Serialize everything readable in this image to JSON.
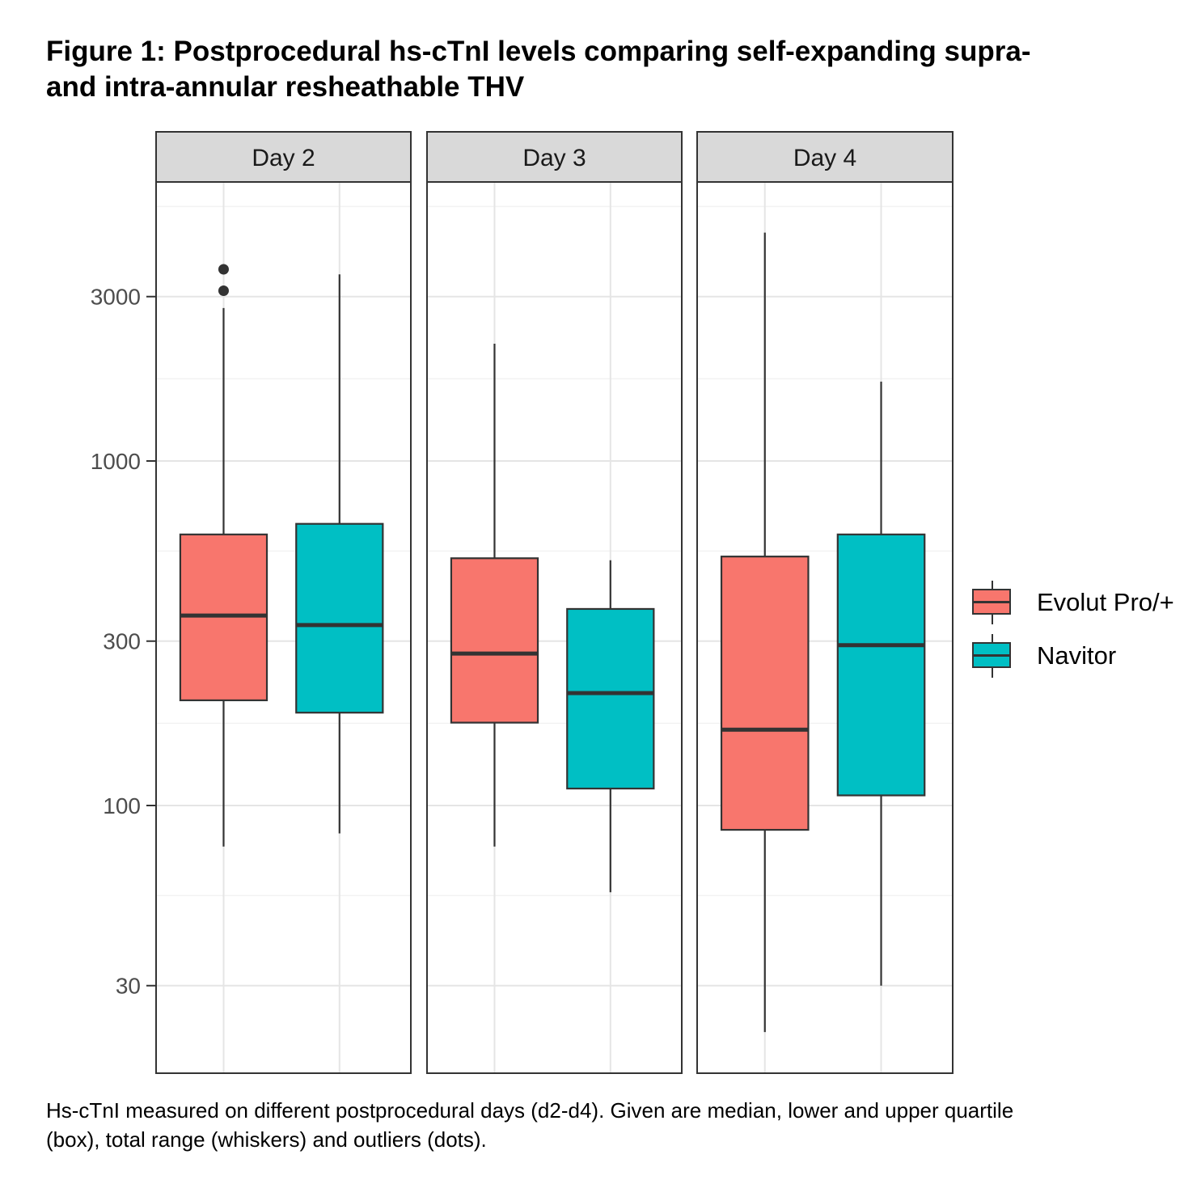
{
  "title": {
    "line1": "Figure 1: Postprocedural hs-cTnI levels comparing self-expanding supra-",
    "line2": "and intra-annular resheathable THV"
  },
  "caption": {
    "line1": "Hs-cTnI measured on different postprocedural days (d2-d4). Given are median, lower and upper quartile",
    "line2": "(box), total range (whiskers) and outliers (dots)."
  },
  "legend": {
    "items": [
      {
        "label": "Evolut Pro/+",
        "color": "#F8766D"
      },
      {
        "label": "Navitor",
        "color": "#00BFC4"
      }
    ]
  },
  "chart_data": {
    "type": "boxplot",
    "y_scale": "log10",
    "ylim": [
      18,
      6000
    ],
    "y_ticks": [
      30,
      100,
      300,
      1000,
      3000
    ],
    "y_tick_labels": [
      "30",
      "100",
      "300",
      "1000",
      "3000"
    ],
    "grid": true,
    "legend_position": "right",
    "facets": [
      {
        "label": "Day 2",
        "groups": [
          {
            "series": "Evolut Pro/+",
            "min": 76,
            "q1": 202,
            "median": 356,
            "q3": 612,
            "max": 2780,
            "outliers": [
              3120,
              3600
            ]
          },
          {
            "series": "Navitor",
            "min": 83,
            "q1": 186,
            "median": 334,
            "q3": 657,
            "max": 3480,
            "outliers": []
          }
        ]
      },
      {
        "label": "Day 3",
        "groups": [
          {
            "series": "Evolut Pro/+",
            "min": 76,
            "q1": 174,
            "median": 276,
            "q3": 522,
            "max": 2190,
            "outliers": []
          },
          {
            "series": "Navitor",
            "min": 56,
            "q1": 112,
            "median": 212,
            "q3": 372,
            "max": 515,
            "outliers": []
          }
        ]
      },
      {
        "label": "Day 4",
        "groups": [
          {
            "series": "Evolut Pro/+",
            "min": 22,
            "q1": 85,
            "median": 166,
            "q3": 528,
            "max": 4600,
            "outliers": []
          },
          {
            "series": "Navitor",
            "min": 30,
            "q1": 107,
            "median": 292,
            "q3": 612,
            "max": 1700,
            "outliers": []
          }
        ]
      }
    ]
  }
}
